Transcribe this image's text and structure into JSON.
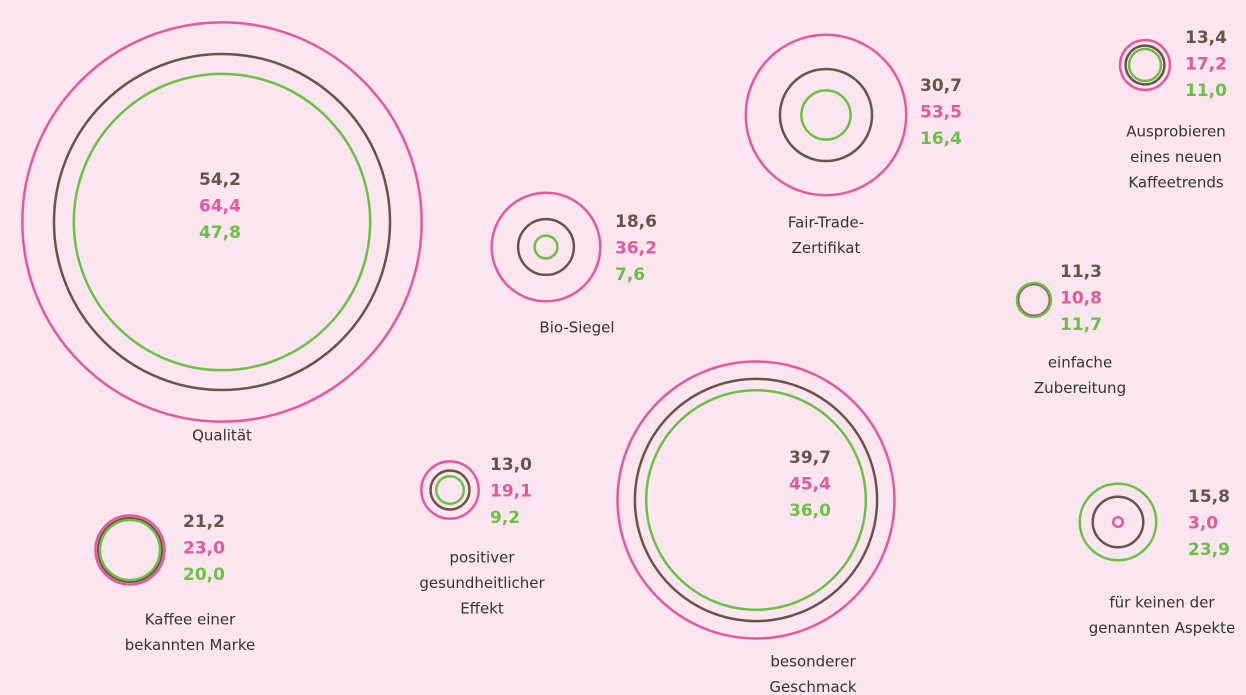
{
  "chart_data": {
    "type": "bubble",
    "colors": [
      "#6b5249",
      "#e8569b",
      "#6cbf45"
    ],
    "groups": [
      {
        "label": [
          "Qualität"
        ],
        "values": [
          54.2,
          64.4,
          47.8
        ],
        "value_labels": [
          "54,2",
          "64,4",
          "47,8"
        ]
      },
      {
        "label": [
          "Bio-Siegel"
        ],
        "values": [
          18.6,
          36.2,
          7.6
        ],
        "value_labels": [
          "18,6",
          "36,2",
          "7,6"
        ]
      },
      {
        "label": [
          "Fair-Trade-",
          "Zertifikat"
        ],
        "values": [
          30.7,
          53.5,
          16.4
        ],
        "value_labels": [
          "30,7",
          "53,5",
          "16,4"
        ]
      },
      {
        "label": [
          "Ausprobieren",
          "eines neuen",
          "Kaffeetrends"
        ],
        "values": [
          13.4,
          17.2,
          11.0
        ],
        "value_labels": [
          "13,4",
          "17,2",
          "11,0"
        ]
      },
      {
        "label": [
          "einfache",
          "Zubereitung"
        ],
        "values": [
          11.3,
          10.8,
          11.7
        ],
        "value_labels": [
          "11,3",
          "10,8",
          "11,7"
        ]
      },
      {
        "label": [
          "Kaffee einer",
          "bekannten Marke"
        ],
        "values": [
          21.2,
          23.0,
          20.0
        ],
        "value_labels": [
          "21,2",
          "23,0",
          "20,0"
        ]
      },
      {
        "label": [
          "positiver",
          "gesundheitlicher",
          "Effekt"
        ],
        "values": [
          13.0,
          19.1,
          9.2
        ],
        "value_labels": [
          "13,0",
          "19,1",
          "9,2"
        ]
      },
      {
        "label": [
          "besonderer",
          "Geschmack"
        ],
        "values": [
          39.7,
          45.4,
          36.0
        ],
        "value_labels": [
          "39,7",
          "45,4",
          "36,0"
        ]
      },
      {
        "label": [
          "für keinen der",
          "genannten Aspekte"
        ],
        "values": [
          15.8,
          3.0,
          23.9
        ],
        "value_labels": [
          "15,8",
          "3,0",
          "23,9"
        ]
      }
    ]
  }
}
